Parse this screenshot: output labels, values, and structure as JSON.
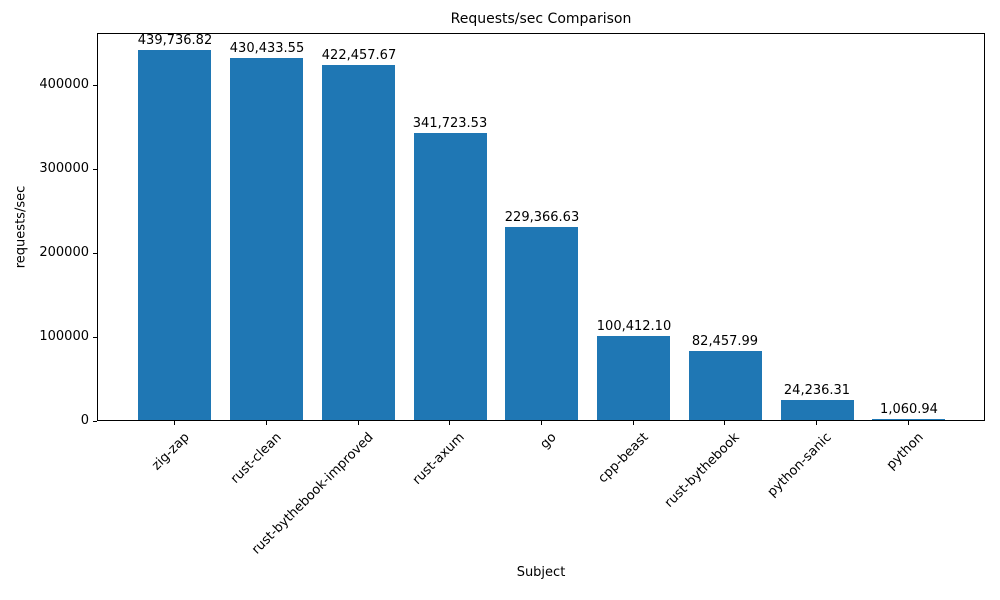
{
  "chart_data": {
    "type": "bar",
    "title": "Requests/sec Comparison",
    "xlabel": "Subject",
    "ylabel": "requests/sec",
    "categories": [
      "zig-zap",
      "rust-clean",
      "rust-bythebook-improved",
      "rust-axum",
      "go",
      "cpp-beast",
      "rust-bythebook",
      "python-sanic",
      "python"
    ],
    "values": [
      439736.82,
      430433.55,
      422457.67,
      341723.53,
      229366.63,
      100412.1,
      82457.99,
      24236.31,
      1060.94
    ],
    "value_labels": [
      "439,736.82",
      "430,433.55",
      "422,457.67",
      "341,723.53",
      "229,366.63",
      "100,412.10",
      "82,457.99",
      "24,236.31",
      "1,060.94"
    ],
    "yticks": [
      0,
      100000,
      200000,
      300000,
      400000
    ],
    "ytick_labels": [
      "0",
      "100000",
      "200000",
      "300000",
      "400000"
    ],
    "ylim": [
      0,
      461723.66
    ],
    "bar_color": "#1f77b4",
    "bar_width_frac": 0.8,
    "x_tick_rotation_deg": 45,
    "grid": false,
    "legend": "none"
  }
}
